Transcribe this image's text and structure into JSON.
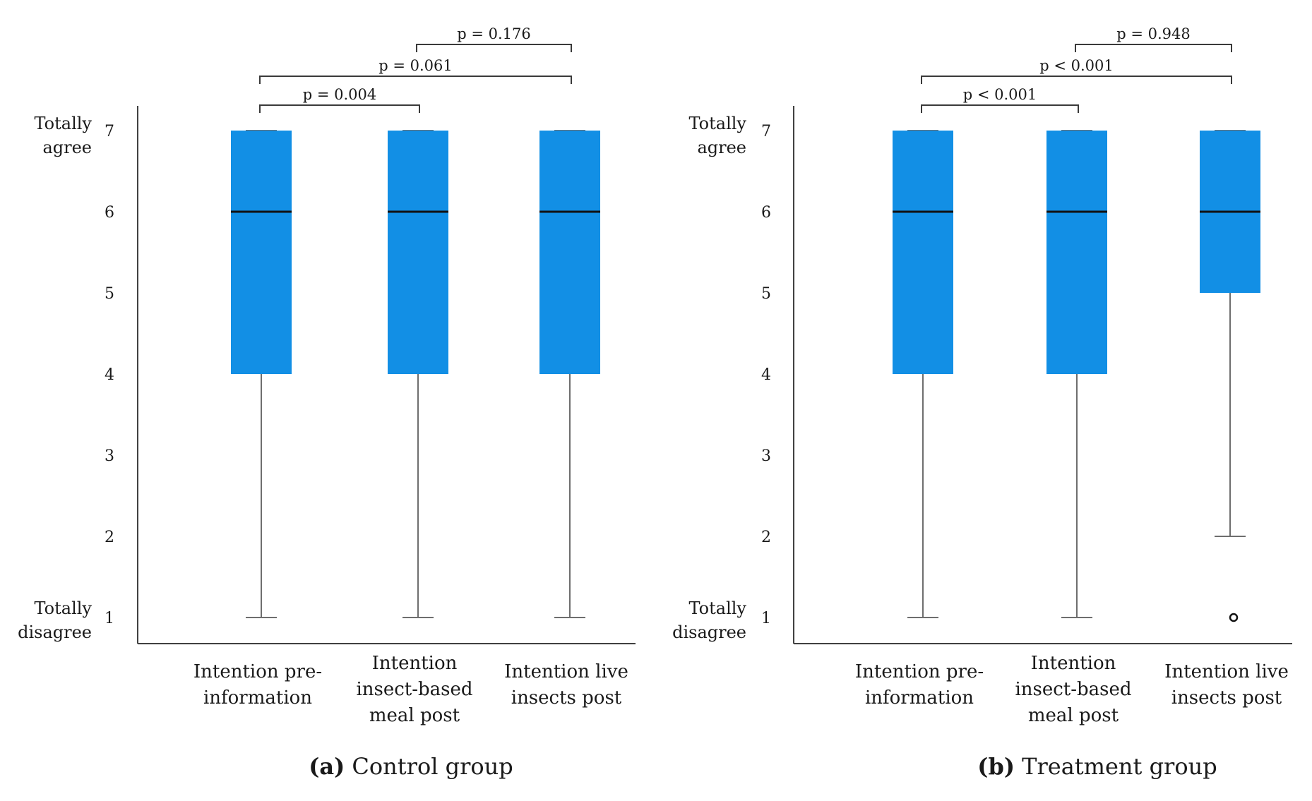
{
  "chart_data": [
    {
      "type": "box",
      "caption": {
        "letter": "(a)",
        "text": "Control group"
      },
      "ylim": [
        1,
        7
      ],
      "yticks": [
        "1",
        "2",
        "3",
        "4",
        "5",
        "6",
        "7"
      ],
      "y_end_labels": {
        "top": [
          "Totally",
          "agree"
        ],
        "bottom": [
          "Totally",
          "disagree"
        ]
      },
      "categories": [
        [
          "Intention pre-",
          "information"
        ],
        [
          "Intention",
          "insect-based",
          "meal post"
        ],
        [
          "Intention live",
          "insects post"
        ]
      ],
      "boxes": [
        {
          "min": 1,
          "q1": 4,
          "median": 6,
          "q3": 7,
          "max": 7,
          "outliers": []
        },
        {
          "min": 1,
          "q1": 4,
          "median": 6,
          "q3": 7,
          "max": 7,
          "outliers": []
        },
        {
          "min": 1,
          "q1": 4,
          "median": 6,
          "q3": 7,
          "max": 7,
          "outliers": []
        }
      ],
      "comparisons": [
        {
          "from": 0,
          "to": 1,
          "label": "p = 0.004",
          "level": 1
        },
        {
          "from": 0,
          "to": 2,
          "label": "p = 0.061",
          "level": 2
        },
        {
          "from": 1,
          "to": 2,
          "label": "p = 0.176",
          "level": 3
        }
      ]
    },
    {
      "type": "box",
      "caption": {
        "letter": "(b)",
        "text": "Treatment group"
      },
      "ylim": [
        1,
        7
      ],
      "yticks": [
        "1",
        "2",
        "3",
        "4",
        "5",
        "6",
        "7"
      ],
      "y_end_labels": {
        "top": [
          "Totally",
          "agree"
        ],
        "bottom": [
          "Totally",
          "disagree"
        ]
      },
      "categories": [
        [
          "Intention pre-",
          "information"
        ],
        [
          "Intention",
          "insect-based",
          "meal post"
        ],
        [
          "Intention live",
          "insects post"
        ]
      ],
      "boxes": [
        {
          "min": 1,
          "q1": 4,
          "median": 6,
          "q3": 7,
          "max": 7,
          "outliers": []
        },
        {
          "min": 1,
          "q1": 4,
          "median": 6,
          "q3": 7,
          "max": 7,
          "outliers": []
        },
        {
          "min": 2,
          "q1": 5,
          "median": 6,
          "q3": 7,
          "max": 7,
          "outliers": [
            1
          ]
        }
      ],
      "comparisons": [
        {
          "from": 0,
          "to": 1,
          "label": "p < 0.001",
          "level": 1
        },
        {
          "from": 0,
          "to": 2,
          "label": "p < 0.001",
          "level": 2
        },
        {
          "from": 1,
          "to": 2,
          "label": "p = 0.948",
          "level": 3
        }
      ]
    }
  ]
}
